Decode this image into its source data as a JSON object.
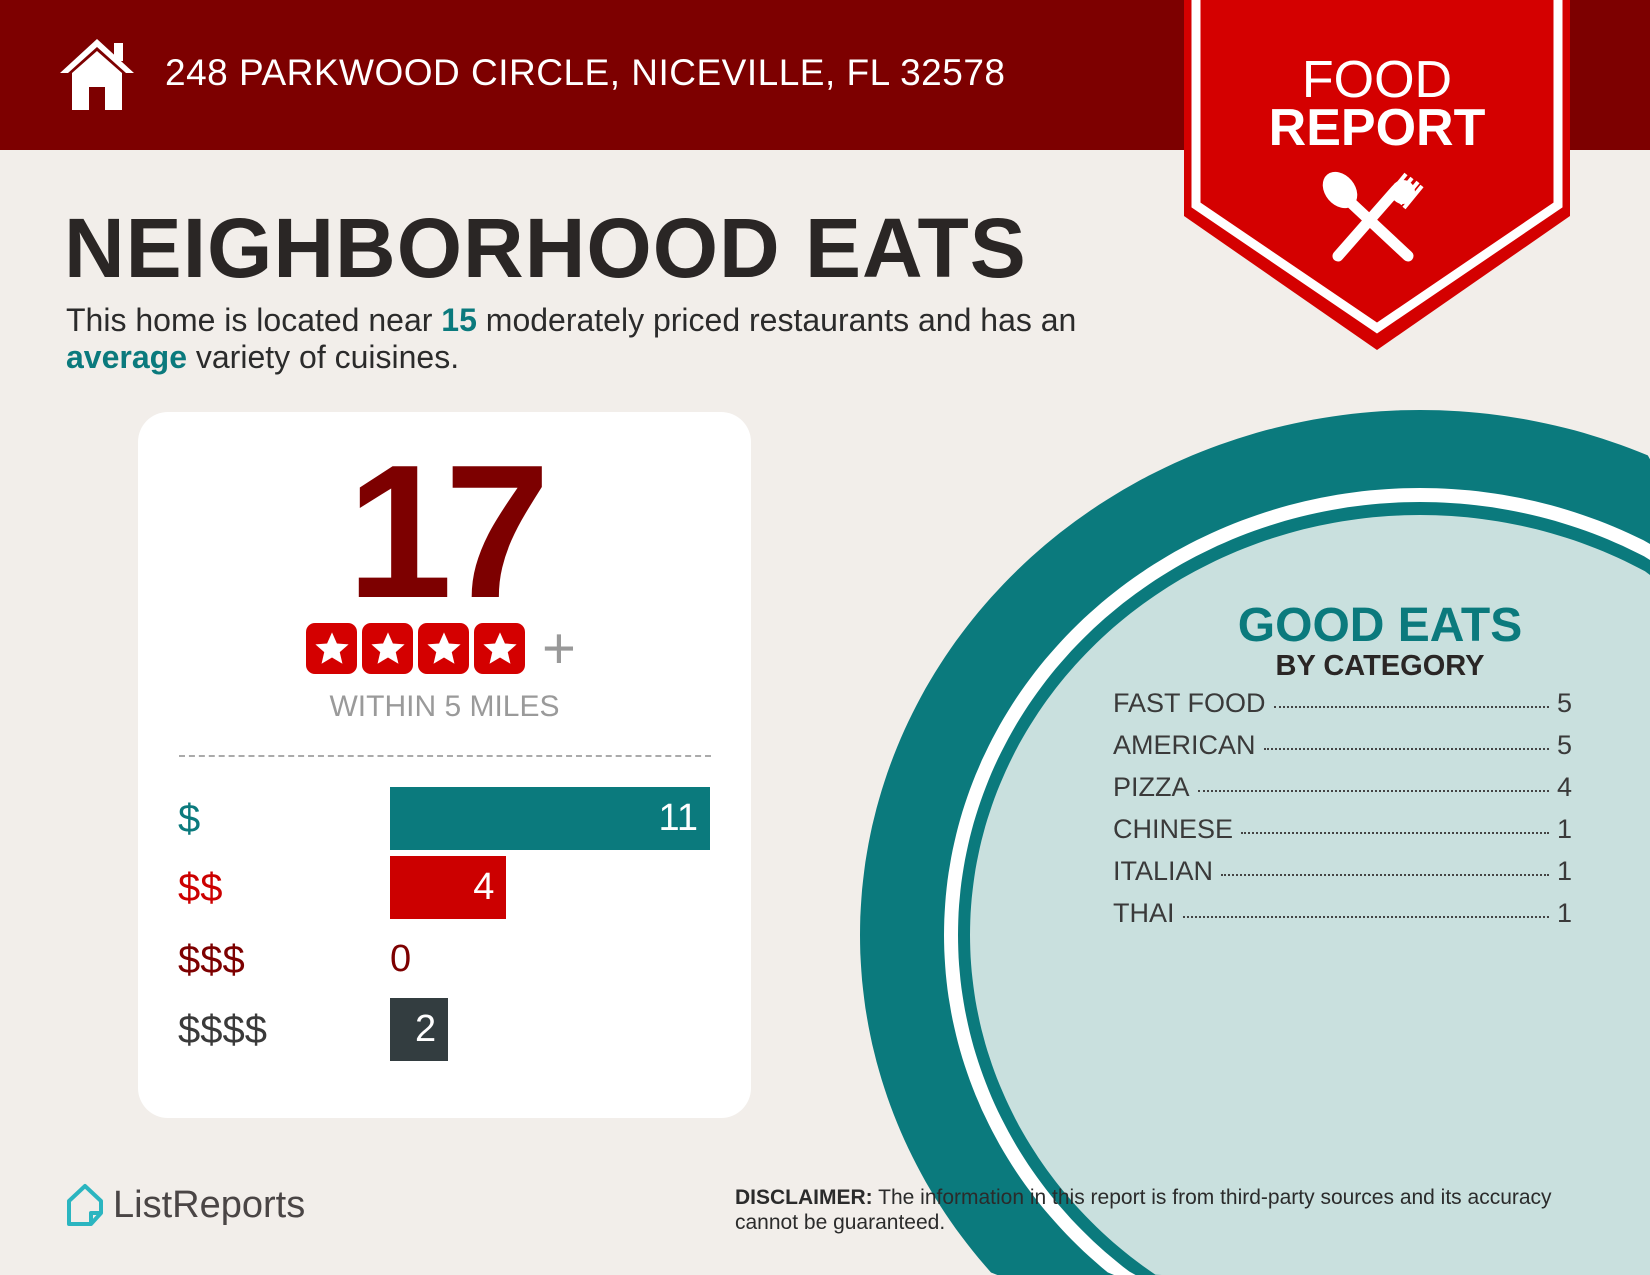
{
  "header": {
    "address": "248 PARKWOOD CIRCLE, NICEVILLE, FL 32578",
    "icon": "house-icon"
  },
  "ribbon": {
    "line1": "FOOD",
    "line2": "REPORT",
    "icon": "utensils-icon"
  },
  "title": "NEIGHBORHOOD EATS",
  "intro": {
    "p1": "This home is located near ",
    "count": "15",
    "p2": " moderately priced restaurants and has an ",
    "variety": "average",
    "p3": " variety of cuisines."
  },
  "summary": {
    "total": "17",
    "stars": 4,
    "plus": "+",
    "within": "WITHIN 5 MILES"
  },
  "price_levels": [
    {
      "label": "$",
      "value": 11,
      "color": "#0b7a7d"
    },
    {
      "label": "$$",
      "value": 4,
      "color": "#cc0000"
    },
    {
      "label": "$$$",
      "value": 0,
      "color": "#7d0000"
    },
    {
      "label": "$$$$",
      "value": 2,
      "color": "#333d40"
    }
  ],
  "categories": {
    "title": "GOOD EATS",
    "subtitle": "BY CATEGORY",
    "items": [
      {
        "name": "FAST FOOD",
        "count": "5"
      },
      {
        "name": "AMERICAN",
        "count": "5"
      },
      {
        "name": "PIZZA",
        "count": "4"
      },
      {
        "name": "CHINESE",
        "count": "1"
      },
      {
        "name": "ITALIAN",
        "count": "1"
      },
      {
        "name": "THAI",
        "count": "1"
      }
    ]
  },
  "footer": {
    "logo": "ListReports",
    "disclaimer_label": "DISCLAIMER:",
    "disclaimer": " The information in this report is from third-party sources and its accuracy cannot be guaranteed."
  },
  "colors": {
    "header": "#7d0000",
    "ribbon": "#d40000",
    "teal": "#0b7a7d",
    "light_teal": "#c9e0de",
    "background": "#f2eeea"
  }
}
